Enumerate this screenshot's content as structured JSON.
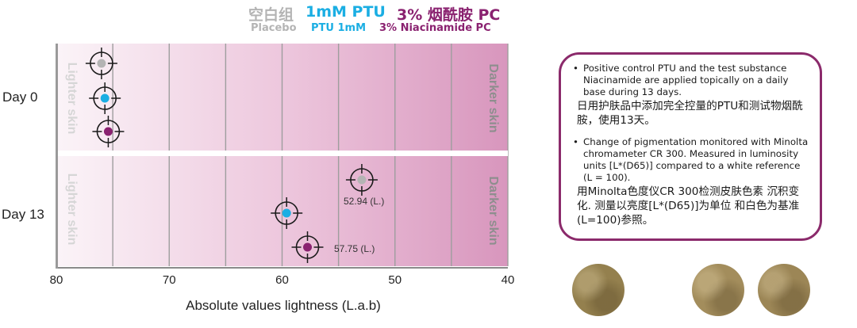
{
  "legend": {
    "cn": {
      "placebo": "空白组",
      "ptu": "1mM PTU",
      "niacinamide": "3% 烟酰胺 PC"
    },
    "en": {
      "placebo": "Placebo",
      "ptu": "PTU 1mM",
      "niacinamide": "3% Niacinamide PC"
    }
  },
  "colors": {
    "placebo": "#b4b4b4",
    "ptu": "#1aaee3",
    "niacinamide": "#8a2270",
    "border": "#8b2a6b"
  },
  "panel_labels": {
    "lighter": "Lighter skin",
    "darker": "Darker skin"
  },
  "chart_data": {
    "type": "scatter",
    "xlabel": "Absolute values lightness (L.a.b)",
    "xlim": [
      80,
      40
    ],
    "xticks": [
      80,
      70,
      60,
      50,
      40
    ],
    "categories": [
      "Day 0",
      "Day 13"
    ],
    "series": [
      {
        "name": "Placebo",
        "values": {
          "Day 0": 76.0,
          "Day 13": 52.94
        }
      },
      {
        "name": "PTU 1mM",
        "values": {
          "Day 0": 75.7,
          "Day 13": 59.6
        }
      },
      {
        "name": "3% Niacinamide PC",
        "values": {
          "Day 0": 75.4,
          "Day 13": 57.75
        }
      }
    ],
    "annotations": [
      {
        "text": "52.94 (L.)",
        "category": "Day 13",
        "series": "Placebo"
      },
      {
        "text": "57.75 (L.)",
        "category": "Day 13",
        "series": "3% Niacinamide PC"
      }
    ]
  },
  "notes": {
    "item1_en": "Positive control PTU and the test substance Niacinamide are applied topically on a  daily base during 13 days.",
    "item1_cn": "日用护肤品中添加完全控量的PTU和测试物烟酰胺，使用13天。",
    "item2_en": "Change of pigmentation monitored with Minolta chromameter CR 300. Measured in luminosity units [L*(D65)] compared to a white reference (L = 100).",
    "item2_cn": "用Minolta色度仪CR  300检测皮肤色素  沉积变化. 测量以亮度[L*(D65)]为单位  和白色为基准(L=100)参照。"
  },
  "swatches": [
    "#94804e",
    "#a38d5c",
    "#9c8656"
  ]
}
